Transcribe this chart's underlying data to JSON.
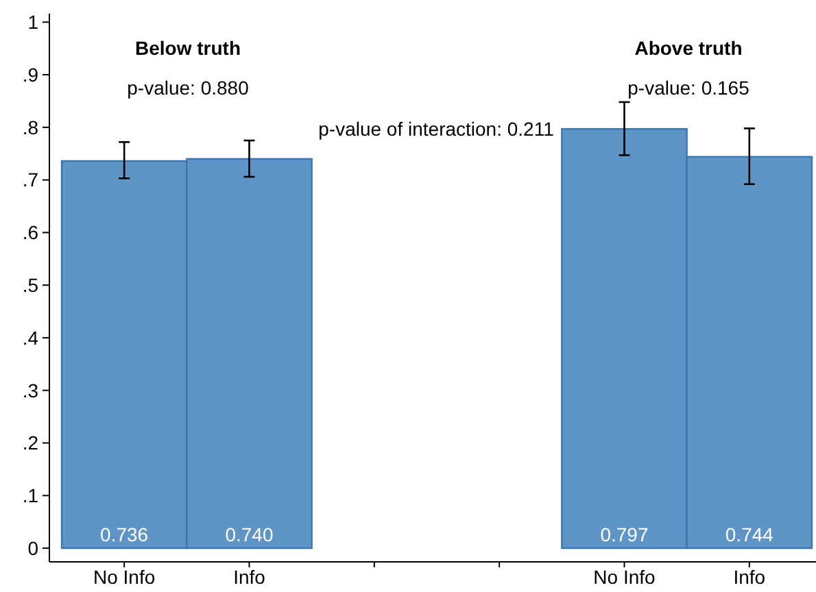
{
  "chart_data": {
    "type": "bar",
    "categories": [
      "No Info",
      "Info",
      null,
      null,
      "No Info",
      "Info"
    ],
    "values": [
      0.736,
      0.74,
      null,
      null,
      0.797,
      0.744
    ],
    "errors": [
      [
        0.703,
        0.772
      ],
      [
        0.706,
        0.775
      ],
      null,
      null,
      [
        0.747,
        0.848
      ],
      [
        0.692,
        0.798
      ]
    ],
    "color": "#5e94c6",
    "value_labels": [
      "0.736",
      "0.740",
      null,
      null,
      "0.797",
      "0.744"
    ],
    "grid": false,
    "ylim": [
      -0.026,
      1.016
    ],
    "yticks": [
      0,
      {
        "value": 0.1,
        "label": ".1"
      },
      {
        "value": 0.2,
        "label": ".2"
      },
      {
        "value": 0.3,
        "label": ".3"
      },
      {
        "value": 0.4,
        "label": ".4"
      },
      {
        "value": 0.5,
        "label": ".5"
      },
      {
        "value": 0.6,
        "label": ".6"
      },
      {
        "value": 0.7,
        "label": ".7"
      },
      {
        "value": 0.8,
        "label": ".8"
      },
      {
        "value": 0.9,
        "label": ".9"
      },
      1
    ],
    "annotations": [
      "Below truth",
      "p-value: 0.880",
      "p-value of interaction: 0.211",
      "Above truth",
      "p-value: 0.165"
    ]
  }
}
